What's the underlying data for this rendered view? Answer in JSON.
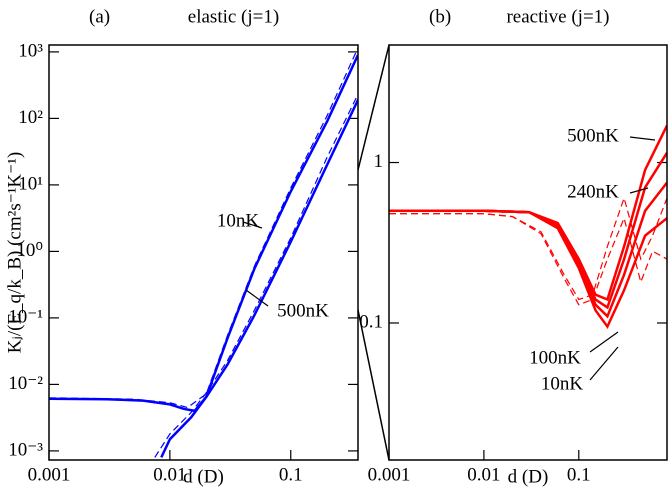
{
  "chart_data": [
    {
      "type": "line",
      "panel_label": "(a)",
      "title": "elastic (j=1)",
      "x_label": "d (D)",
      "y_label": "Kⱼ/(E_q/k_B)  (cm²s⁻¹K⁻¹)",
      "xscale": "log",
      "yscale": "log",
      "xlim": [
        0.001,
        0.36
      ],
      "ylim": [
        0.00073,
        1270
      ],
      "xticks": [
        0.001,
        0.01,
        0.1
      ],
      "yticks": [
        {
          "value": 0.001,
          "label": "10⁻³"
        },
        {
          "value": 0.01,
          "label": "10⁻²"
        },
        {
          "value": 0.1,
          "label": "10⁻¹"
        },
        {
          "value": 1,
          "label": "10⁰"
        },
        {
          "value": 10,
          "label": "10¹"
        },
        {
          "value": 100,
          "label": "10²"
        },
        {
          "value": 1000,
          "label": "10³"
        }
      ],
      "color": "#0000ff",
      "series": [
        {
          "name": "10nK",
          "dash": false,
          "x": [
            0.001,
            0.003,
            0.006,
            0.01,
            0.013,
            0.016,
            0.02,
            0.03,
            0.05,
            0.1,
            0.2,
            0.36
          ],
          "values": [
            0.0061,
            0.006,
            0.0057,
            0.005,
            0.0043,
            0.004,
            0.0065,
            0.05,
            0.55,
            8,
            90,
            900
          ]
        },
        {
          "name": "500nK",
          "dash": false,
          "x": [
            0.0085,
            0.01,
            0.015,
            0.02,
            0.03,
            0.05,
            0.1,
            0.2,
            0.36
          ],
          "values": [
            0.0008,
            0.0015,
            0.0032,
            0.0065,
            0.02,
            0.11,
            1.4,
            20,
            190
          ]
        },
        {
          "dash": true,
          "x": [
            0.001,
            0.005,
            0.01,
            0.014,
            0.02,
            0.03,
            0.05,
            0.1,
            0.2,
            0.36
          ],
          "values": [
            0.0063,
            0.006,
            0.0053,
            0.0045,
            0.0072,
            0.055,
            0.6,
            9,
            110,
            1150
          ]
        },
        {
          "dash": true,
          "x": [
            0.0075,
            0.01,
            0.015,
            0.02,
            0.03,
            0.05,
            0.1,
            0.2,
            0.36
          ],
          "values": [
            0.0008,
            0.0018,
            0.0038,
            0.0075,
            0.023,
            0.13,
            1.6,
            26,
            230
          ]
        }
      ]
    },
    {
      "type": "line",
      "panel_label": "(b)",
      "title": "reactive (j=1)",
      "x_label": "d (D)",
      "xscale": "log",
      "yscale": "log",
      "xlim": [
        0.001,
        0.85
      ],
      "ylim": [
        0.014,
        5.4
      ],
      "xticks": [
        0.001,
        0.01,
        0.1
      ],
      "yticks": [
        0.1,
        1
      ],
      "color": "#ff0000",
      "series": [
        {
          "name": "500nK",
          "dash": false,
          "x": [
            0.001,
            0.01,
            0.03,
            0.06,
            0.1,
            0.15,
            0.2,
            0.3,
            0.5,
            0.85
          ],
          "values": [
            0.5,
            0.5,
            0.49,
            0.42,
            0.25,
            0.15,
            0.14,
            0.3,
            0.9,
            1.7
          ]
        },
        {
          "name": "240nK",
          "dash": false,
          "x": [
            0.001,
            0.01,
            0.03,
            0.06,
            0.1,
            0.15,
            0.2,
            0.3,
            0.5,
            0.85
          ],
          "values": [
            0.5,
            0.5,
            0.49,
            0.41,
            0.24,
            0.14,
            0.125,
            0.25,
            0.7,
            1.15
          ]
        },
        {
          "name": "100nK",
          "dash": false,
          "x": [
            0.001,
            0.01,
            0.03,
            0.06,
            0.1,
            0.15,
            0.2,
            0.3,
            0.5,
            0.85
          ],
          "values": [
            0.5,
            0.5,
            0.49,
            0.4,
            0.23,
            0.13,
            0.11,
            0.2,
            0.5,
            0.75
          ]
        },
        {
          "name": "10nK",
          "dash": false,
          "x": [
            0.001,
            0.01,
            0.03,
            0.06,
            0.1,
            0.15,
            0.2,
            0.3,
            0.5,
            0.85
          ],
          "values": [
            0.5,
            0.5,
            0.49,
            0.39,
            0.22,
            0.12,
            0.095,
            0.16,
            0.35,
            0.45
          ]
        },
        {
          "dash": true,
          "x": [
            0.001,
            0.01,
            0.02,
            0.04,
            0.07,
            0.1,
            0.14,
            0.2,
            0.3,
            0.45,
            0.6,
            0.85
          ],
          "values": [
            0.48,
            0.48,
            0.46,
            0.37,
            0.2,
            0.14,
            0.15,
            0.3,
            0.6,
            0.25,
            0.35,
            0.6
          ]
        },
        {
          "dash": true,
          "x": [
            0.001,
            0.01,
            0.02,
            0.04,
            0.07,
            0.1,
            0.14,
            0.2,
            0.3,
            0.45,
            0.6,
            0.85
          ],
          "values": [
            0.48,
            0.48,
            0.46,
            0.36,
            0.19,
            0.13,
            0.14,
            0.25,
            0.45,
            0.18,
            0.28,
            0.25
          ]
        }
      ]
    }
  ]
}
